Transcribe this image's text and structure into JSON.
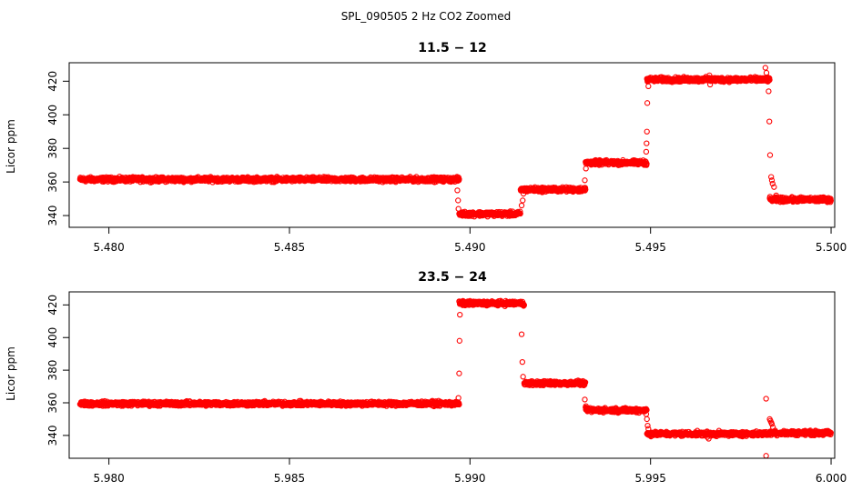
{
  "chart_data": {
    "title": "SPL_090505  2 Hz CO2 Zoomed",
    "panels": [
      {
        "type": "scatter",
        "title": "11.5 − 12",
        "xlabel": "",
        "ylabel": "Licor ppm",
        "xlim": [
          5.4789,
          5.5001
        ],
        "ylim": [
          333,
          431
        ],
        "xticks": [
          5.48,
          5.485,
          5.49,
          5.495,
          5.5
        ],
        "xtick_labels": [
          "5.480",
          "5.485",
          "5.490",
          "5.495",
          "5.500"
        ],
        "yticks": [
          340,
          360,
          380,
          400,
          420
        ],
        "ytick_labels": [
          "340",
          "360",
          "380",
          "400",
          "420"
        ],
        "segments": [
          {
            "x0": 5.4792,
            "x1": 5.4897,
            "y": 361.5
          },
          {
            "x0": 5.4897,
            "x1": 5.4914,
            "y": 341
          },
          {
            "x0": 5.4914,
            "x1": 5.4932,
            "y": 355.5
          },
          {
            "x0": 5.4932,
            "x1": 5.4949,
            "y": 371.5
          },
          {
            "x0": 5.4949,
            "x1": 5.4983,
            "y": 421
          },
          {
            "x0": 5.4983,
            "x1": 5.5,
            "y": 349.5
          }
        ],
        "outliers": [
          [
            5.48965,
            355
          ],
          [
            5.48967,
            349
          ],
          [
            5.48968,
            344
          ],
          [
            5.49143,
            346
          ],
          [
            5.49146,
            349
          ],
          [
            5.49148,
            353
          ],
          [
            5.49318,
            361
          ],
          [
            5.49321,
            368
          ],
          [
            5.49488,
            378
          ],
          [
            5.49489,
            383
          ],
          [
            5.4949,
            390
          ],
          [
            5.49491,
            407
          ],
          [
            5.49494,
            417
          ],
          [
            5.49663,
            423.5
          ],
          [
            5.49665,
            418
          ],
          [
            5.49818,
            428
          ],
          [
            5.49821,
            425
          ],
          [
            5.49827,
            414
          ],
          [
            5.49829,
            396
          ],
          [
            5.49831,
            376
          ],
          [
            5.49834,
            363
          ],
          [
            5.49836,
            361
          ],
          [
            5.49838,
            359
          ],
          [
            5.49842,
            357
          ],
          [
            5.49848,
            352
          ]
        ]
      },
      {
        "type": "scatter",
        "title": "23.5 − 24",
        "xlabel": "",
        "ylabel": "Licor ppm",
        "xlim": [
          5.9789,
          6.0001
        ],
        "ylim": [
          326,
          428
        ],
        "xticks": [
          5.98,
          5.985,
          5.99,
          5.995,
          6.0
        ],
        "xtick_labels": [
          "5.980",
          "5.985",
          "5.990",
          "5.995",
          "6.000"
        ],
        "yticks": [
          340,
          360,
          380,
          400,
          420
        ],
        "ytick_labels": [
          "340",
          "360",
          "380",
          "400",
          "420"
        ],
        "segments": [
          {
            "x0": 5.9792,
            "x1": 5.9897,
            "y": 359.5
          },
          {
            "x0": 5.9897,
            "x1": 5.9915,
            "y": 421
          },
          {
            "x0": 5.9915,
            "x1": 5.9932,
            "y": 372
          },
          {
            "x0": 5.9932,
            "x1": 5.9949,
            "y": 355.5
          },
          {
            "x0": 5.9949,
            "x1": 5.9983,
            "y": 341
          },
          {
            "x0": 5.9983,
            "x1": 6.0,
            "y": 341.5
          }
        ],
        "outliers": [
          [
            5.98968,
            363
          ],
          [
            5.9897,
            378
          ],
          [
            5.98971,
            398
          ],
          [
            5.98972,
            414
          ],
          [
            5.99143,
            402
          ],
          [
            5.99145,
            385
          ],
          [
            5.99147,
            376
          ],
          [
            5.99318,
            362
          ],
          [
            5.99321,
            358
          ],
          [
            5.99488,
            353
          ],
          [
            5.9949,
            350
          ],
          [
            5.99492,
            346
          ],
          [
            5.99494,
            344
          ],
          [
            5.99657,
            339
          ],
          [
            5.99661,
            338
          ],
          [
            5.9982,
            362.5
          ],
          [
            5.9982,
            327.5
          ],
          [
            5.9983,
            350
          ],
          [
            5.99832,
            349
          ],
          [
            5.99834,
            348
          ],
          [
            5.99836,
            347
          ],
          [
            5.99839,
            345
          ],
          [
            5.99845,
            343
          ]
        ]
      }
    ]
  }
}
